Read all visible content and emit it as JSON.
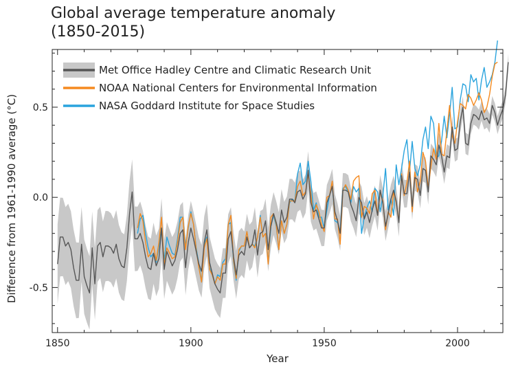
{
  "chart_data": {
    "type": "line",
    "title": "Global average temperature anomaly",
    "subtitle": "(1850-2015)",
    "xlabel": "Year",
    "ylabel": "Difference from 1961-1990 average (°C)",
    "xlim": [
      1848,
      2017
    ],
    "ylim": [
      -0.75,
      0.82
    ],
    "x_ticks": [
      1850,
      1900,
      1950,
      2000
    ],
    "y_ticks": [
      -0.5,
      0.0,
      0.5
    ],
    "y_tick_labels": [
      "-0.5",
      "0.0",
      "0.5"
    ],
    "legend_position": "top-left",
    "grid": false,
    "uncertainty_band": {
      "label": "Met Office Hadley Centre and Climatic Research Unit uncertainty",
      "color": "#c8c8c8",
      "half_width_1850": 0.22,
      "half_width_1900": 0.15,
      "half_width_1950": 0.1,
      "half_width_2015": 0.05
    },
    "series": [
      {
        "name": "Met Office Hadley Centre and Climatic Research Unit",
        "color": "#555555",
        "start_year": 1850,
        "values": [
          -0.37,
          -0.22,
          -0.22,
          -0.27,
          -0.25,
          -0.29,
          -0.39,
          -0.46,
          -0.46,
          -0.26,
          -0.44,
          -0.49,
          -0.53,
          -0.28,
          -0.48,
          -0.27,
          -0.25,
          -0.33,
          -0.27,
          -0.27,
          -0.28,
          -0.31,
          -0.26,
          -0.34,
          -0.38,
          -0.39,
          -0.28,
          -0.09,
          0.03,
          -0.23,
          -0.23,
          -0.2,
          -0.25,
          -0.33,
          -0.39,
          -0.4,
          -0.31,
          -0.38,
          -0.34,
          -0.17,
          -0.4,
          -0.3,
          -0.34,
          -0.38,
          -0.35,
          -0.29,
          -0.2,
          -0.18,
          -0.39,
          -0.25,
          -0.17,
          -0.23,
          -0.3,
          -0.37,
          -0.41,
          -0.25,
          -0.18,
          -0.36,
          -0.42,
          -0.48,
          -0.51,
          -0.53,
          -0.42,
          -0.42,
          -0.23,
          -0.19,
          -0.33,
          -0.43,
          -0.32,
          -0.3,
          -0.32,
          -0.22,
          -0.28,
          -0.26,
          -0.18,
          -0.32,
          -0.2,
          -0.19,
          -0.13,
          -0.29,
          -0.16,
          -0.09,
          -0.14,
          -0.2,
          -0.07,
          -0.14,
          -0.11,
          -0.01,
          -0.01,
          -0.03,
          0.03,
          0.04,
          -0.01,
          0.02,
          0.15,
          -0.03,
          -0.08,
          -0.07,
          -0.12,
          -0.17,
          -0.17,
          -0.03,
          0.01,
          0.06,
          -0.08,
          -0.13,
          -0.2,
          0.04,
          0.04,
          0.03,
          -0.04,
          -0.08,
          -0.13,
          0.0,
          -0.03,
          -0.12,
          -0.08,
          -0.14,
          -0.07,
          -0.02,
          -0.1,
          0.04,
          -0.03,
          -0.16,
          -0.09,
          -0.01,
          0.04,
          -0.02,
          -0.14,
          0.12,
          0.02,
          0.02,
          0.14,
          -0.05,
          0.11,
          0.1,
          0.01,
          0.16,
          0.15,
          0.03,
          0.23,
          0.21,
          0.18,
          0.29,
          0.23,
          0.14,
          0.23,
          0.22,
          0.39,
          0.26,
          0.27,
          0.42,
          0.5,
          0.3,
          0.29,
          0.41,
          0.46,
          0.45,
          0.43,
          0.48,
          0.43,
          0.44,
          0.41,
          0.51,
          0.47,
          0.4,
          0.45,
          0.49,
          0.57,
          0.75
        ]
      },
      {
        "name": "NOAA National Centers for Environmental Information",
        "color": "#f58a1f",
        "start_year": 1880,
        "values": [
          -0.17,
          -0.09,
          -0.13,
          -0.25,
          -0.33,
          -0.31,
          -0.27,
          -0.35,
          -0.25,
          -0.11,
          -0.38,
          -0.28,
          -0.31,
          -0.34,
          -0.33,
          -0.25,
          -0.14,
          -0.11,
          -0.29,
          -0.16,
          -0.09,
          -0.15,
          -0.29,
          -0.39,
          -0.47,
          -0.28,
          -0.23,
          -0.4,
          -0.43,
          -0.48,
          -0.44,
          -0.46,
          -0.37,
          -0.37,
          -0.15,
          -0.1,
          -0.35,
          -0.45,
          -0.29,
          -0.27,
          -0.27,
          -0.19,
          -0.28,
          -0.26,
          -0.28,
          -0.22,
          -0.11,
          -0.22,
          -0.2,
          -0.37,
          -0.11,
          -0.09,
          -0.15,
          -0.29,
          -0.13,
          -0.2,
          -0.15,
          -0.02,
          -0.02,
          -0.02,
          0.06,
          0.09,
          0.01,
          0.03,
          0.13,
          0.02,
          -0.12,
          -0.04,
          -0.08,
          -0.15,
          -0.19,
          0.0,
          0.01,
          0.09,
          -0.12,
          -0.12,
          -0.26,
          0.04,
          0.07,
          0.04,
          -0.01,
          0.09,
          0.11,
          0.12,
          -0.11,
          -0.05,
          -0.06,
          -0.09,
          0.02,
          0.04,
          -0.1,
          0.03,
          -0.02,
          -0.18,
          -0.08,
          -0.11,
          0.03,
          -0.03,
          -0.13,
          0.13,
          0.01,
          0.08,
          0.2,
          -0.08,
          0.14,
          0.03,
          0.09,
          0.25,
          0.2,
          0.05,
          0.17,
          0.27,
          0.21,
          0.41,
          0.24,
          0.23,
          0.37,
          0.51,
          0.34,
          0.3,
          0.42,
          0.52,
          0.51,
          0.49,
          0.57,
          0.55,
          0.51,
          0.54,
          0.58,
          0.54,
          0.47,
          0.5,
          0.57,
          0.67,
          0.74,
          0.75
        ]
      },
      {
        "name": "NASA Goddard Institute for Space Studies",
        "color": "#29a3dd",
        "start_year": 1880,
        "values": [
          -0.2,
          -0.12,
          -0.1,
          -0.2,
          -0.28,
          -0.33,
          -0.31,
          -0.36,
          -0.27,
          -0.17,
          -0.35,
          -0.22,
          -0.27,
          -0.31,
          -0.32,
          -0.23,
          -0.11,
          -0.11,
          -0.27,
          -0.17,
          -0.08,
          -0.15,
          -0.28,
          -0.37,
          -0.47,
          -0.26,
          -0.22,
          -0.39,
          -0.43,
          -0.48,
          -0.43,
          -0.44,
          -0.36,
          -0.34,
          -0.15,
          -0.14,
          -0.36,
          -0.46,
          -0.3,
          -0.27,
          -0.27,
          -0.19,
          -0.28,
          -0.26,
          -0.27,
          -0.22,
          -0.1,
          -0.22,
          -0.2,
          -0.36,
          -0.16,
          -0.1,
          -0.16,
          -0.29,
          -0.13,
          -0.2,
          -0.15,
          -0.03,
          -0.01,
          -0.02,
          0.13,
          0.19,
          0.07,
          0.09,
          0.2,
          0.09,
          -0.07,
          -0.03,
          -0.11,
          -0.11,
          -0.17,
          -0.07,
          0.01,
          0.08,
          -0.13,
          -0.14,
          -0.19,
          0.05,
          0.06,
          0.03,
          -0.03,
          0.06,
          0.03,
          0.05,
          -0.2,
          -0.11,
          -0.06,
          -0.02,
          -0.08,
          0.05,
          0.03,
          -0.08,
          0.01,
          0.16,
          -0.07,
          -0.01,
          -0.1,
          0.18,
          0.07,
          0.16,
          0.26,
          0.32,
          0.14,
          0.31,
          0.16,
          0.12,
          0.18,
          0.32,
          0.39,
          0.27,
          0.45,
          0.41,
          0.22,
          0.23,
          0.31,
          0.45,
          0.33,
          0.46,
          0.61,
          0.38,
          0.39,
          0.54,
          0.63,
          0.62,
          0.53,
          0.68,
          0.64,
          0.66,
          0.54,
          0.65,
          0.72,
          0.61,
          0.64,
          0.68,
          0.75,
          0.87
        ]
      }
    ]
  }
}
